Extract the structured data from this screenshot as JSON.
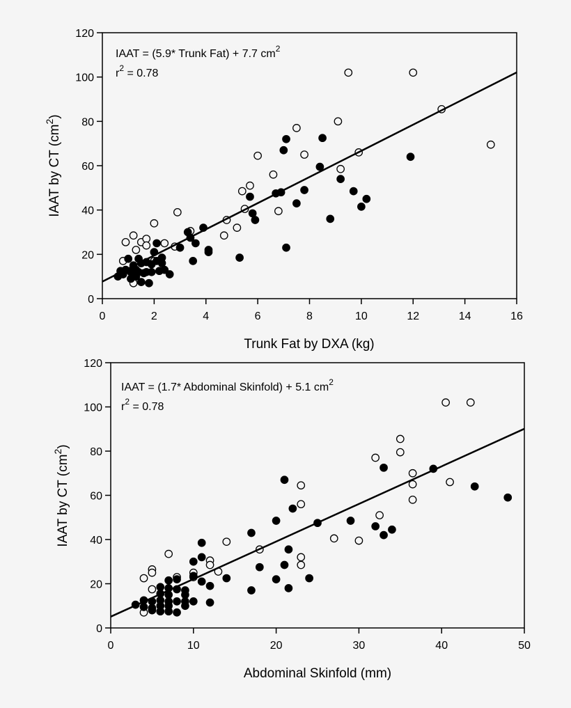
{
  "chart_data": [
    {
      "type": "scatter",
      "title": "",
      "xlabel": "Trunk Fat by DXA (kg)",
      "ylabel": "IAAT by CT (cm2)",
      "xlim": [
        0,
        16
      ],
      "ylim": [
        0,
        120
      ],
      "xticks": [
        0,
        2,
        4,
        6,
        8,
        10,
        12,
        14,
        16
      ],
      "yticks": [
        0,
        20,
        40,
        60,
        80,
        100,
        120
      ],
      "grid": false,
      "annotation": {
        "equation": "IAAT = (5.9* Trunk Fat) + 7.7 cm",
        "equation_sup": "2",
        "r2_prefix": "r",
        "r2_sup": "2",
        "r2_value": " = 0.78"
      },
      "regression": {
        "slope": 5.9,
        "intercept": 7.7,
        "x_range": [
          0,
          16
        ]
      },
      "series": [
        {
          "name": "open circles",
          "marker": "open",
          "points": [
            [
              0.8,
              17
            ],
            [
              0.9,
              25.5
            ],
            [
              1.2,
              28.5
            ],
            [
              1.3,
              22
            ],
            [
              1.5,
              25.5
            ],
            [
              1.7,
              27
            ],
            [
              1.7,
              24
            ],
            [
              2.0,
              34
            ],
            [
              2.4,
              25
            ],
            [
              2.8,
              23.5
            ],
            [
              2.9,
              39
            ],
            [
              1.2,
              7
            ],
            [
              2.0,
              17
            ],
            [
              3.4,
              30.5
            ],
            [
              4.7,
              28.5
            ],
            [
              4.8,
              35.5
            ],
            [
              5.2,
              32
            ],
            [
              5.4,
              48.5
            ],
            [
              5.5,
              40.5
            ],
            [
              5.7,
              51
            ],
            [
              6.0,
              64.5
            ],
            [
              6.6,
              56
            ],
            [
              6.8,
              39.5
            ],
            [
              7.5,
              77
            ],
            [
              7.8,
              65
            ],
            [
              9.1,
              80
            ],
            [
              9.2,
              58.5
            ],
            [
              9.5,
              102
            ],
            [
              9.9,
              66
            ],
            [
              12.0,
              102
            ],
            [
              13.1,
              85.5
            ],
            [
              15.0,
              69.5
            ]
          ]
        },
        {
          "name": "filled circles",
          "marker": "filled",
          "points": [
            [
              0.6,
              10
            ],
            [
              0.7,
              12.5
            ],
            [
              0.8,
              11
            ],
            [
              0.9,
              13
            ],
            [
              1.0,
              18
            ],
            [
              1.1,
              12
            ],
            [
              1.1,
              9
            ],
            [
              1.2,
              15
            ],
            [
              1.3,
              13
            ],
            [
              1.3,
              10
            ],
            [
              1.4,
              18
            ],
            [
              1.4,
              12
            ],
            [
              1.5,
              16
            ],
            [
              1.5,
              7.5
            ],
            [
              1.6,
              11.5
            ],
            [
              1.7,
              12
            ],
            [
              1.7,
              16.5
            ],
            [
              1.8,
              7
            ],
            [
              1.9,
              15.5
            ],
            [
              1.9,
              12
            ],
            [
              2.0,
              21
            ],
            [
              2.1,
              17
            ],
            [
              2.1,
              25
            ],
            [
              2.2,
              12.5
            ],
            [
              2.3,
              18.5
            ],
            [
              2.3,
              16
            ],
            [
              2.4,
              13
            ],
            [
              2.6,
              11
            ],
            [
              3.0,
              23
            ],
            [
              3.3,
              30
            ],
            [
              3.4,
              27.5
            ],
            [
              3.5,
              17
            ],
            [
              3.6,
              25
            ],
            [
              3.9,
              32
            ],
            [
              4.1,
              22
            ],
            [
              4.1,
              21
            ],
            [
              5.3,
              18.5
            ],
            [
              5.7,
              46
            ],
            [
              5.8,
              38.5
            ],
            [
              5.9,
              35.5
            ],
            [
              6.7,
              47.5
            ],
            [
              6.9,
              48
            ],
            [
              7.0,
              67
            ],
            [
              7.1,
              72
            ],
            [
              7.1,
              23
            ],
            [
              7.5,
              43
            ],
            [
              7.8,
              49
            ],
            [
              8.4,
              59.5
            ],
            [
              8.5,
              72.5
            ],
            [
              8.8,
              36
            ],
            [
              9.2,
              54
            ],
            [
              9.7,
              48.5
            ],
            [
              10.0,
              41.5
            ],
            [
              10.2,
              45
            ],
            [
              11.9,
              64
            ]
          ]
        }
      ]
    },
    {
      "type": "scatter",
      "title": "",
      "xlabel": "Abdominal Skinfold (mm)",
      "ylabel": "IAAT by CT (cm2)",
      "xlim": [
        0,
        50
      ],
      "ylim": [
        0,
        120
      ],
      "xticks": [
        0,
        10,
        20,
        30,
        40,
        50
      ],
      "yticks": [
        0,
        20,
        40,
        60,
        80,
        100,
        120
      ],
      "grid": false,
      "annotation": {
        "equation": "IAAT = (1.7* Abdominal Skinfold) + 5.1 cm",
        "equation_sup": "2",
        "r2_prefix": "r",
        "r2_sup": "2",
        "r2_value": " = 0.78"
      },
      "regression": {
        "slope": 1.7,
        "intercept": 5.1,
        "x_range": [
          0,
          50
        ]
      },
      "series": [
        {
          "name": "open circles",
          "marker": "open",
          "points": [
            [
              4,
              22.5
            ],
            [
              4,
              7
            ],
            [
              5,
              26.5
            ],
            [
              5,
              25
            ],
            [
              5,
              17.5
            ],
            [
              7,
              33.5
            ],
            [
              8,
              23
            ],
            [
              10,
              25
            ],
            [
              10,
              23
            ],
            [
              12,
              30.5
            ],
            [
              12,
              28.5
            ],
            [
              13,
              25.5
            ],
            [
              14,
              39
            ],
            [
              18,
              35.5
            ],
            [
              23,
              64.5
            ],
            [
              23,
              56
            ],
            [
              23,
              32
            ],
            [
              23,
              28.5
            ],
            [
              27,
              40.5
            ],
            [
              30,
              39.5
            ],
            [
              32,
              77
            ],
            [
              32.5,
              51
            ],
            [
              35,
              85.5
            ],
            [
              35,
              79.5
            ],
            [
              36.5,
              70
            ],
            [
              36.5,
              65
            ],
            [
              36.5,
              58
            ],
            [
              40.5,
              102
            ],
            [
              41,
              66
            ],
            [
              43.5,
              102
            ]
          ]
        },
        {
          "name": "filled circles",
          "marker": "filled",
          "points": [
            [
              3,
              10.5
            ],
            [
              4,
              12.5
            ],
            [
              4,
              9.5
            ],
            [
              5,
              12
            ],
            [
              5,
              9
            ],
            [
              5,
              8
            ],
            [
              6,
              18.5
            ],
            [
              6,
              15.5
            ],
            [
              6,
              12.5
            ],
            [
              6,
              10
            ],
            [
              6,
              7.5
            ],
            [
              7,
              21.5
            ],
            [
              7,
              18
            ],
            [
              7,
              15
            ],
            [
              7,
              12
            ],
            [
              7,
              10
            ],
            [
              7,
              7.5
            ],
            [
              8,
              22
            ],
            [
              8,
              17.5
            ],
            [
              8,
              12
            ],
            [
              8,
              7
            ],
            [
              9,
              17
            ],
            [
              9,
              15
            ],
            [
              9,
              12
            ],
            [
              9,
              10
            ],
            [
              10,
              30
            ],
            [
              10,
              23.5
            ],
            [
              10,
              12
            ],
            [
              11,
              38.5
            ],
            [
              11,
              32
            ],
            [
              11,
              21
            ],
            [
              12,
              19
            ],
            [
              12,
              11.5
            ],
            [
              14,
              22.5
            ],
            [
              17,
              43
            ],
            [
              17,
              17
            ],
            [
              18,
              27.5
            ],
            [
              20,
              48.5
            ],
            [
              20,
              22
            ],
            [
              21,
              67
            ],
            [
              21,
              28.5
            ],
            [
              21.5,
              35.5
            ],
            [
              21.5,
              18
            ],
            [
              22,
              54
            ],
            [
              24,
              22.5
            ],
            [
              25,
              47.5
            ],
            [
              29,
              48.5
            ],
            [
              32,
              46
            ],
            [
              33,
              72.5
            ],
            [
              33,
              42
            ],
            [
              34,
              44.5
            ],
            [
              39,
              72
            ],
            [
              44,
              64
            ],
            [
              48,
              59
            ]
          ]
        }
      ]
    }
  ],
  "charts": [
    {
      "ylabel_main": "IAAT by CT (cm",
      "ylabel_sup": "2",
      "ylabel_end": ")"
    },
    {
      "ylabel_main": "IAAT by CT (cm",
      "ylabel_sup": "2",
      "ylabel_end": ")"
    }
  ]
}
